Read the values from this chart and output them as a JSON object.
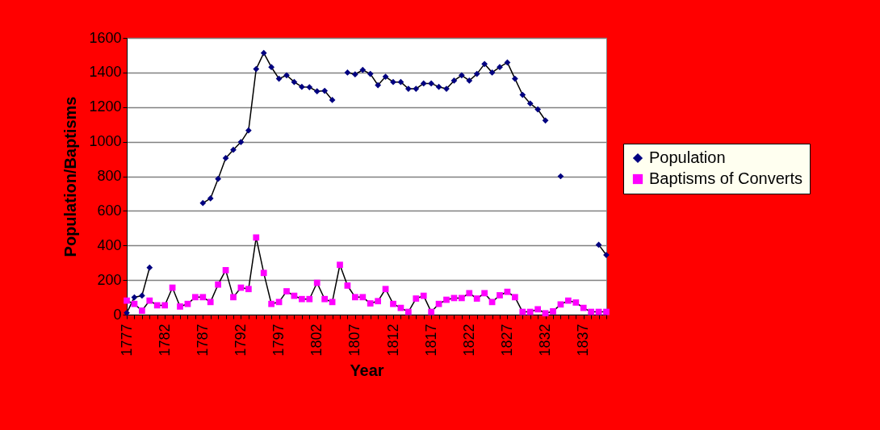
{
  "chart_data": {
    "type": "line",
    "xlabel": "Year",
    "ylabel": "Population/Baptisms",
    "x": [
      1777,
      1778,
      1779,
      1780,
      1781,
      1782,
      1783,
      1784,
      1785,
      1786,
      1787,
      1788,
      1789,
      1790,
      1791,
      1792,
      1793,
      1794,
      1795,
      1796,
      1797,
      1798,
      1799,
      1800,
      1801,
      1802,
      1803,
      1804,
      1805,
      1806,
      1807,
      1808,
      1809,
      1810,
      1811,
      1812,
      1813,
      1814,
      1815,
      1816,
      1817,
      1818,
      1819,
      1820,
      1821,
      1822,
      1823,
      1824,
      1825,
      1826,
      1827,
      1828,
      1829,
      1830,
      1831,
      1832,
      1833,
      1834,
      1835,
      1836,
      1837,
      1838,
      1839,
      1840
    ],
    "series": [
      {
        "name": "Population",
        "color": "#000080",
        "marker": "diamond",
        "values": [
          10,
          100,
          110,
          272,
          null,
          null,
          null,
          null,
          null,
          null,
          645,
          672,
          785,
          905,
          953,
          998,
          1065,
          1420,
          1513,
          1431,
          1364,
          1384,
          1345,
          1317,
          1315,
          1291,
          1294,
          1241,
          null,
          1400,
          1389,
          1415,
          1392,
          1327,
          1376,
          1345,
          1345,
          1306,
          1306,
          1337,
          1337,
          1317,
          1306,
          1353,
          1384,
          1353,
          1392,
          1449,
          1400,
          1431,
          1458,
          1364,
          1271,
          1221,
          1187,
          1123,
          null,
          800,
          null,
          null,
          null,
          null,
          404,
          345
        ]
      },
      {
        "name": "Baptisms of Converts",
        "color": "#ff00ff",
        "marker": "square",
        "values": [
          81,
          62,
          23,
          81,
          54,
          54,
          156,
          47,
          62,
          101,
          101,
          73,
          174,
          257,
          101,
          156,
          148,
          446,
          241,
          62,
          73,
          135,
          109,
          90,
          90,
          184,
          90,
          73,
          288,
          168,
          101,
          101,
          65,
          78,
          148,
          62,
          39,
          16,
          93,
          109,
          16,
          62,
          86,
          96,
          96,
          124,
          93,
          124,
          73,
          112,
          132,
          101,
          16,
          16,
          31,
          8,
          19,
          59,
          81,
          70,
          39,
          16,
          16,
          16
        ]
      }
    ],
    "xlim": [
      1777,
      1840
    ],
    "xticks": [
      1777,
      {
        "value": 1778,
        "label": null
      },
      {
        "value": 1779,
        "label": null
      },
      {
        "value": 1780,
        "label": null
      },
      {
        "value": 1781,
        "label": null
      },
      1782,
      {
        "value": 1783,
        "label": null
      },
      {
        "value": 1784,
        "label": null
      },
      {
        "value": 1785,
        "label": null
      },
      {
        "value": 1786,
        "label": null
      },
      1787,
      {
        "value": 1788,
        "label": null
      },
      {
        "value": 1789,
        "label": null
      },
      {
        "value": 1790,
        "label": null
      },
      {
        "value": 1791,
        "label": null
      },
      1792,
      {
        "value": 1793,
        "label": null
      },
      {
        "value": 1794,
        "label": null
      },
      {
        "value": 1795,
        "label": null
      },
      {
        "value": 1796,
        "label": null
      },
      1797,
      {
        "value": 1798,
        "label": null
      },
      {
        "value": 1799,
        "label": null
      },
      {
        "value": 1800,
        "label": null
      },
      {
        "value": 1801,
        "label": null
      },
      1802,
      {
        "value": 1803,
        "label": null
      },
      {
        "value": 1804,
        "label": null
      },
      {
        "value": 1805,
        "label": null
      },
      {
        "value": 1806,
        "label": null
      },
      1807,
      {
        "value": 1808,
        "label": null
      },
      {
        "value": 1809,
        "label": null
      },
      {
        "value": 1810,
        "label": null
      },
      {
        "value": 1811,
        "label": null
      },
      1812,
      {
        "value": 1813,
        "label": null
      },
      {
        "value": 1814,
        "label": null
      },
      {
        "value": 1815,
        "label": null
      },
      {
        "value": 1816,
        "label": null
      },
      1817,
      {
        "value": 1818,
        "label": null
      },
      {
        "value": 1819,
        "label": null
      },
      {
        "value": 1820,
        "label": null
      },
      {
        "value": 1821,
        "label": null
      },
      1822,
      {
        "value": 1823,
        "label": null
      },
      {
        "value": 1824,
        "label": null
      },
      {
        "value": 1825,
        "label": null
      },
      {
        "value": 1826,
        "label": null
      },
      1827,
      {
        "value": 1828,
        "label": null
      },
      {
        "value": 1829,
        "label": null
      },
      {
        "value": 1830,
        "label": null
      },
      {
        "value": 1831,
        "label": null
      },
      1832,
      {
        "value": 1833,
        "label": null
      },
      {
        "value": 1834,
        "label": null
      },
      {
        "value": 1835,
        "label": null
      },
      {
        "value": 1836,
        "label": null
      },
      1837,
      {
        "value": 1838,
        "label": null
      },
      {
        "value": 1839,
        "label": null
      },
      {
        "value": 1840,
        "label": null
      }
    ],
    "ylim": [
      0,
      1600
    ],
    "yticks": [
      0,
      200,
      400,
      600,
      800,
      1000,
      1200,
      1400,
      1600
    ],
    "grid": "y",
    "legend": "right",
    "line_style": "solid"
  }
}
